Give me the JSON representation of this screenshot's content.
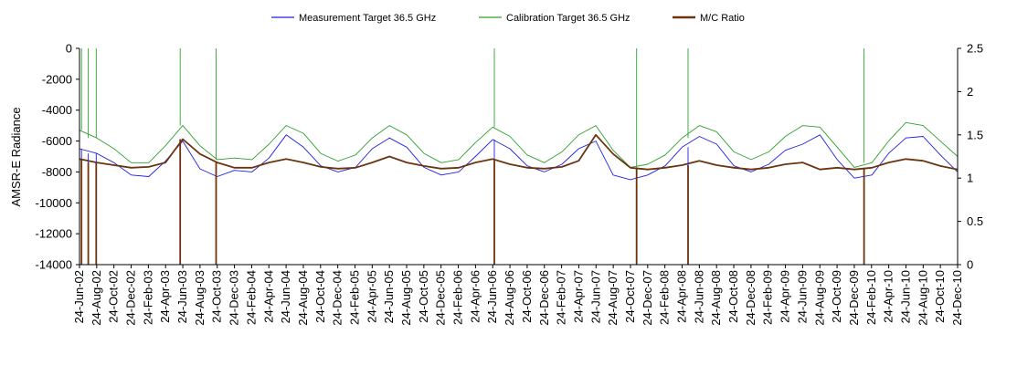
{
  "chart_data": {
    "type": "line",
    "title": "",
    "xlabel": "",
    "ylabel": "AMSR-E Radiance",
    "y2label": "",
    "ylim": [
      -14000,
      0
    ],
    "y2lim": [
      0,
      2.5
    ],
    "yticks": [
      0,
      -2000,
      -4000,
      -6000,
      -8000,
      -10000,
      -12000,
      -14000
    ],
    "y2ticks": [
      2.5,
      2,
      1.5,
      1,
      0.5,
      0
    ],
    "y2tick_labels": [
      "2.5",
      "2",
      "1.5",
      "1",
      "0.5",
      "0"
    ],
    "xlim": [
      "2002-06-24",
      "2010-12-24"
    ],
    "x_tick_labels": [
      "24-Jun-02",
      "24-Aug-02",
      "24-Oct-02",
      "24-Dec-02",
      "24-Feb-03",
      "24-Apr-03",
      "24-Jun-03",
      "24-Aug-03",
      "24-Oct-03",
      "24-Dec-03",
      "24-Feb-04",
      "24-Apr-04",
      "24-Jun-04",
      "24-Aug-04",
      "24-Oct-04",
      "24-Dec-04",
      "24-Feb-05",
      "24-Apr-05",
      "24-Jun-05",
      "24-Aug-05",
      "24-Oct-05",
      "24-Dec-05",
      "24-Feb-06",
      "24-Apr-06",
      "24-Jun-06",
      "24-Aug-06",
      "24-Oct-06",
      "24-Dec-06",
      "24-Feb-07",
      "24-Apr-07",
      "24-Jun-07",
      "24-Aug-07",
      "24-Oct-07",
      "24-Dec-07",
      "24-Feb-08",
      "24-Apr-08",
      "24-Jun-08",
      "24-Aug-08",
      "24-Oct-08",
      "24-Dec-08",
      "24-Feb-09",
      "24-Apr-09",
      "24-Jun-09",
      "24-Aug-09",
      "24-Oct-09",
      "24-Dec-09",
      "24-Feb-10",
      "24-Apr-10",
      "24-Jun-10",
      "24-Aug-10",
      "24-Oct-10",
      "24-Dec-10"
    ],
    "legend_position": "top",
    "grid": false,
    "series": [
      {
        "name": "Measurement Target 36.5 GHz",
        "axis": "left",
        "color": "#1f1fe6",
        "x": [
          "2002-06-24",
          "2002-08-24",
          "2002-10-24",
          "2002-12-24",
          "2003-02-24",
          "2003-04-24",
          "2003-06-24",
          "2003-08-24",
          "2003-10-24",
          "2003-12-24",
          "2004-02-24",
          "2004-04-24",
          "2004-06-24",
          "2004-08-24",
          "2004-10-24",
          "2004-12-24",
          "2005-02-24",
          "2005-04-24",
          "2005-06-24",
          "2005-08-24",
          "2005-10-24",
          "2005-12-24",
          "2006-02-24",
          "2006-04-24",
          "2006-06-24",
          "2006-08-24",
          "2006-10-24",
          "2006-12-24",
          "2007-02-24",
          "2007-04-24",
          "2007-06-24",
          "2007-08-24",
          "2007-10-24",
          "2007-12-24",
          "2008-02-24",
          "2008-04-24",
          "2008-06-24",
          "2008-08-24",
          "2008-10-24",
          "2008-12-24",
          "2009-02-24",
          "2009-04-24",
          "2009-06-24",
          "2009-08-24",
          "2009-10-24",
          "2009-12-24",
          "2010-02-24",
          "2010-04-24",
          "2010-06-24",
          "2010-08-24",
          "2010-10-24",
          "2010-12-24"
        ],
        "y": [
          -6500,
          -6800,
          -7400,
          -8200,
          -8300,
          -7300,
          -6000,
          -7800,
          -8300,
          -7900,
          -8000,
          -7100,
          -5600,
          -6400,
          -7600,
          -8000,
          -7700,
          -6500,
          -5800,
          -6400,
          -7700,
          -8200,
          -8000,
          -7000,
          -5900,
          -6500,
          -7600,
          -8000,
          -7500,
          -6500,
          -6000,
          -8200,
          -8500,
          -8200,
          -7600,
          -6400,
          -5700,
          -6200,
          -7600,
          -8000,
          -7500,
          -6600,
          -6200,
          -5600,
          -7200,
          -8400,
          -8200,
          -6800,
          -5800,
          -5700,
          -6900,
          -8000
        ]
      },
      {
        "name": "Calibration Target 36.5 GHz",
        "axis": "left",
        "color": "#2ea02e",
        "x": [
          "2002-06-24",
          "2002-08-24",
          "2002-10-24",
          "2002-12-24",
          "2003-02-24",
          "2003-04-24",
          "2003-06-24",
          "2003-08-24",
          "2003-10-24",
          "2003-12-24",
          "2004-02-24",
          "2004-04-24",
          "2004-06-24",
          "2004-08-24",
          "2004-10-24",
          "2004-12-24",
          "2005-02-24",
          "2005-04-24",
          "2005-06-24",
          "2005-08-24",
          "2005-10-24",
          "2005-12-24",
          "2006-02-24",
          "2006-04-24",
          "2006-06-24",
          "2006-08-24",
          "2006-10-24",
          "2006-12-24",
          "2007-02-24",
          "2007-04-24",
          "2007-06-24",
          "2007-08-24",
          "2007-10-24",
          "2007-12-24",
          "2008-02-24",
          "2008-04-24",
          "2008-06-24",
          "2008-08-24",
          "2008-10-24",
          "2008-12-24",
          "2009-02-24",
          "2009-04-24",
          "2009-06-24",
          "2009-08-24",
          "2009-10-24",
          "2009-12-24",
          "2010-02-24",
          "2010-04-24",
          "2010-06-24",
          "2010-08-24",
          "2010-10-24",
          "2010-12-24"
        ],
        "y": [
          -5300,
          -5800,
          -6500,
          -7400,
          -7400,
          -6300,
          -5000,
          -6300,
          -7200,
          -7100,
          -7200,
          -6200,
          -5000,
          -5500,
          -6800,
          -7300,
          -6900,
          -5800,
          -5000,
          -5600,
          -6800,
          -7400,
          -7200,
          -6100,
          -5100,
          -5700,
          -6900,
          -7400,
          -6700,
          -5600,
          -5000,
          -6600,
          -7700,
          -7500,
          -6900,
          -5800,
          -5000,
          -5400,
          -6700,
          -7200,
          -6700,
          -5700,
          -5000,
          -5100,
          -6400,
          -7700,
          -7400,
          -6000,
          -4800,
          -5000,
          -6000,
          -7000
        ]
      },
      {
        "name": "M/C Ratio",
        "axis": "right",
        "color": "#6b3410",
        "x": [
          "2002-06-24",
          "2002-08-24",
          "2002-10-24",
          "2002-12-24",
          "2003-02-24",
          "2003-04-24",
          "2003-06-24",
          "2003-08-24",
          "2003-10-24",
          "2003-12-24",
          "2004-02-24",
          "2004-04-24",
          "2004-06-24",
          "2004-08-24",
          "2004-10-24",
          "2004-12-24",
          "2005-02-24",
          "2005-04-24",
          "2005-06-24",
          "2005-08-24",
          "2005-10-24",
          "2005-12-24",
          "2006-02-24",
          "2006-04-24",
          "2006-06-24",
          "2006-08-24",
          "2006-10-24",
          "2006-12-24",
          "2007-02-24",
          "2007-04-24",
          "2007-06-24",
          "2007-08-24",
          "2007-10-24",
          "2007-12-24",
          "2008-02-24",
          "2008-04-24",
          "2008-06-24",
          "2008-08-24",
          "2008-10-24",
          "2008-12-24",
          "2009-02-24",
          "2009-04-24",
          "2009-06-24",
          "2009-08-24",
          "2009-10-24",
          "2009-12-24",
          "2010-02-24",
          "2010-04-24",
          "2010-06-24",
          "2010-08-24",
          "2010-10-24",
          "2010-12-24"
        ],
        "y": [
          1.22,
          1.18,
          1.15,
          1.12,
          1.13,
          1.18,
          1.45,
          1.28,
          1.18,
          1.12,
          1.12,
          1.18,
          1.22,
          1.18,
          1.13,
          1.11,
          1.12,
          1.18,
          1.25,
          1.18,
          1.14,
          1.11,
          1.12,
          1.18,
          1.22,
          1.16,
          1.12,
          1.11,
          1.13,
          1.2,
          1.5,
          1.28,
          1.12,
          1.1,
          1.12,
          1.15,
          1.2,
          1.15,
          1.12,
          1.1,
          1.12,
          1.16,
          1.18,
          1.1,
          1.12,
          1.1,
          1.12,
          1.18,
          1.22,
          1.2,
          1.14,
          1.1
        ]
      }
    ],
    "spikes": [
      {
        "series": "Measurement Target 36.5 GHz",
        "x": "2002-07-01",
        "y": -14000
      },
      {
        "series": "Measurement Target 36.5 GHz",
        "x": "2002-07-25",
        "y": -14000
      },
      {
        "series": "Measurement Target 36.5 GHz",
        "x": "2002-08-22",
        "y": -14000
      },
      {
        "series": "Measurement Target 36.5 GHz",
        "x": "2003-06-15",
        "y": -14000
      },
      {
        "series": "Measurement Target 36.5 GHz",
        "x": "2003-10-20",
        "y": -14000
      },
      {
        "series": "Measurement Target 36.5 GHz",
        "x": "2006-06-30",
        "y": -14000
      },
      {
        "series": "Measurement Target 36.5 GHz",
        "x": "2007-11-15",
        "y": -14000
      },
      {
        "series": "Measurement Target 36.5 GHz",
        "x": "2008-05-15",
        "y": -14000
      },
      {
        "series": "Measurement Target 36.5 GHz",
        "x": "2010-01-27",
        "y": -14000
      },
      {
        "series": "Calibration Target 36.5 GHz",
        "x": "2002-07-01",
        "y": 0
      },
      {
        "series": "Calibration Target 36.5 GHz",
        "x": "2002-07-25",
        "y": 0
      },
      {
        "series": "Calibration Target 36.5 GHz",
        "x": "2002-08-22",
        "y": 0
      },
      {
        "series": "Calibration Target 36.5 GHz",
        "x": "2003-06-15",
        "y": 0
      },
      {
        "series": "Calibration Target 36.5 GHz",
        "x": "2003-10-20",
        "y": 0
      },
      {
        "series": "Calibration Target 36.5 GHz",
        "x": "2006-06-30",
        "y": 0
      },
      {
        "series": "Calibration Target 36.5 GHz",
        "x": "2007-11-15",
        "y": 0
      },
      {
        "series": "Calibration Target 36.5 GHz",
        "x": "2008-05-15",
        "y": 0
      },
      {
        "series": "Calibration Target 36.5 GHz",
        "x": "2010-01-27",
        "y": 0
      },
      {
        "series": "M/C Ratio",
        "x": "2002-07-01",
        "y": 0
      },
      {
        "series": "M/C Ratio",
        "x": "2002-07-25",
        "y": 0
      },
      {
        "series": "M/C Ratio",
        "x": "2002-08-22",
        "y": 0
      },
      {
        "series": "M/C Ratio",
        "x": "2003-06-15",
        "y": 0
      },
      {
        "series": "M/C Ratio",
        "x": "2003-10-20",
        "y": 0
      },
      {
        "series": "M/C Ratio",
        "x": "2006-06-30",
        "y": 0
      },
      {
        "series": "M/C Ratio",
        "x": "2007-11-15",
        "y": 0
      },
      {
        "series": "M/C Ratio",
        "x": "2008-05-15",
        "y": 0
      },
      {
        "series": "M/C Ratio",
        "x": "2010-01-27",
        "y": 0
      }
    ]
  }
}
